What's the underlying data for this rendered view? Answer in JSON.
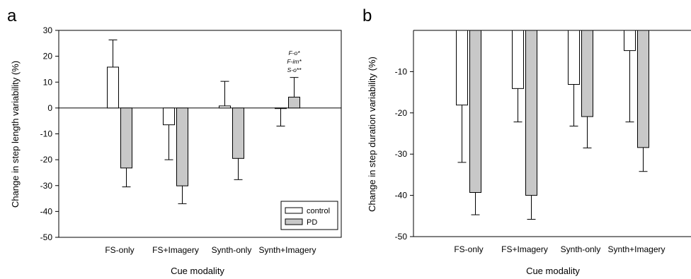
{
  "colors": {
    "control": "#ffffff",
    "PD": "#c8c8c8",
    "stroke": "#000000"
  },
  "legend": {
    "position": "bottom-right of panel a",
    "entries": [
      "control",
      "PD"
    ]
  },
  "chart_data": [
    {
      "type": "bar",
      "panel_label": "a",
      "xlabel": "Cue modality",
      "ylabel": "Change in step length variability (%)",
      "ylim": [
        -50,
        30
      ],
      "yticks": [
        -50,
        -40,
        -30,
        -20,
        -10,
        0,
        10,
        20,
        30
      ],
      "ytick_labels": [
        "-50",
        "-40",
        "-30",
        "-20",
        "-10",
        "0",
        "10",
        "20",
        "30"
      ],
      "categories": [
        "FS-only",
        "FS+Imagery",
        "Synth-only",
        "Synth+Imagery"
      ],
      "series": [
        {
          "name": "control",
          "values": [
            15.8,
            -6.5,
            0.8,
            -0.2
          ],
          "errors": [
            10.5,
            13.5,
            9.5,
            6.8
          ]
        },
        {
          "name": "PD",
          "values": [
            -23.2,
            -30.1,
            -19.5,
            4.2
          ],
          "errors": [
            7.3,
            6.9,
            8.2,
            7.6
          ]
        }
      ],
      "annotations": [
        {
          "category": "Synth+Imagery",
          "lines": [
            "F-o*",
            "F-im*",
            "S-o**"
          ]
        }
      ],
      "grid": false
    },
    {
      "type": "bar",
      "panel_label": "b",
      "xlabel": "Cue modality",
      "ylabel": "Change in step duration variability (%)",
      "ylim": [
        -50,
        0
      ],
      "yticks": [
        -50,
        -40,
        -30,
        -20,
        -10
      ],
      "ytick_labels": [
        "-50",
        "-40",
        "-30",
        "-20",
        "-10"
      ],
      "categories": [
        "FS-only",
        "FS+Imagery",
        "Synth-only",
        "Synth+Imagery"
      ],
      "series": [
        {
          "name": "control",
          "values": [
            -18.1,
            -14.1,
            -13.1,
            -4.9
          ],
          "errors": [
            13.9,
            8.1,
            10.1,
            17.3
          ]
        },
        {
          "name": "PD",
          "values": [
            -39.3,
            -40.0,
            -20.9,
            -28.4
          ],
          "errors": [
            5.4,
            5.8,
            7.6,
            5.8
          ]
        }
      ],
      "grid": false
    }
  ]
}
